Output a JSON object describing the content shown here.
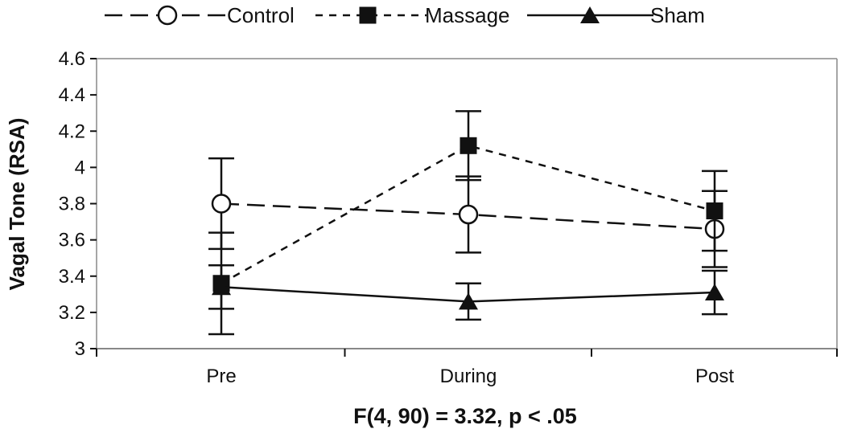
{
  "chart_data": {
    "type": "line",
    "categories": [
      "Pre",
      "During",
      "Post"
    ],
    "ylabel": "Vagal Tone (RSA)",
    "ylim": [
      3,
      4.6
    ],
    "yticks": [
      "3",
      "3.2",
      "3.4",
      "3.6",
      "3.8",
      "4",
      "4.2",
      "4.4",
      "4.6"
    ],
    "ytick_values": [
      3,
      3.2,
      3.4,
      3.6,
      3.8,
      4.0,
      4.2,
      4.4,
      4.6
    ],
    "annotation": "F(4, 90) = 3.32, p < .05",
    "legend_position": "top",
    "series": [
      {
        "name": "Control",
        "marker": "open-circle",
        "line_style": "long-dash",
        "values": [
          3.8,
          3.74,
          3.66
        ],
        "error": [
          0.25,
          0.21,
          0.21
        ]
      },
      {
        "name": "Massage",
        "marker": "filled-square",
        "line_style": "short-dash",
        "values": [
          3.36,
          4.12,
          3.76
        ],
        "error": [
          0.28,
          0.19,
          0.22
        ]
      },
      {
        "name": "Sham",
        "marker": "filled-triangle",
        "line_style": "solid",
        "values": [
          3.34,
          3.26,
          3.31
        ],
        "error": [
          0.12,
          0.1,
          0.12
        ]
      }
    ],
    "colors": {
      "ink": "#111111",
      "marker_fill_open": "#ffffff"
    }
  }
}
